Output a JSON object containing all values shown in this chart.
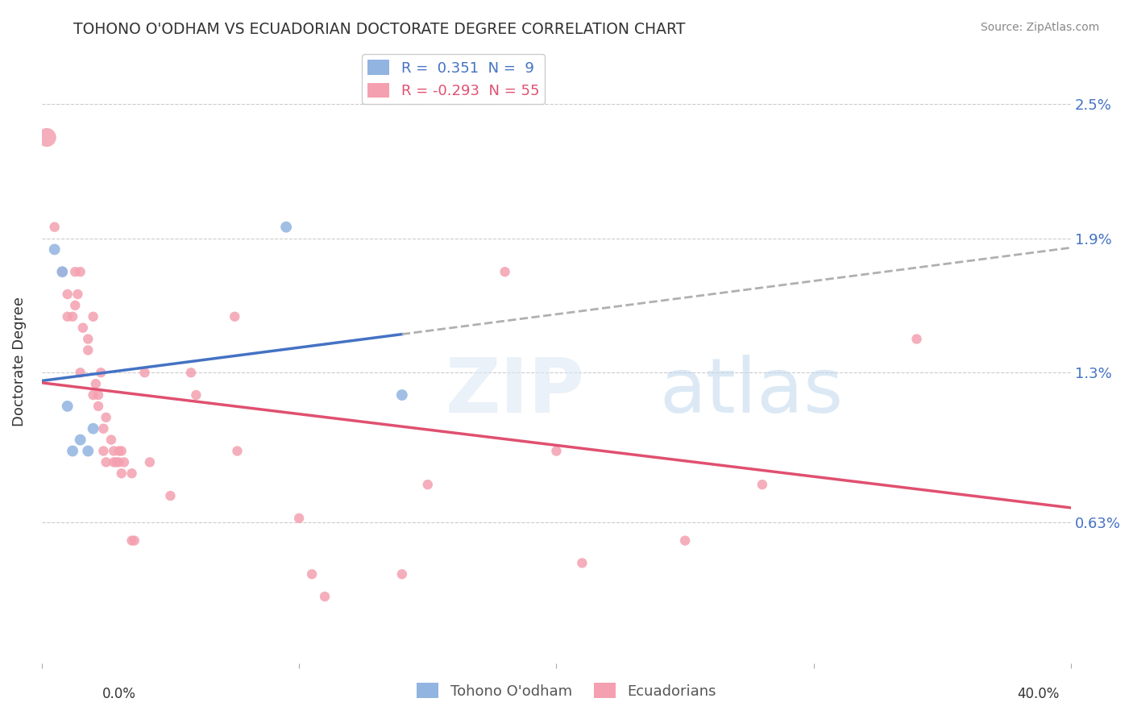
{
  "title": "TOHONO O'ODHAM VS ECUADORIAN DOCTORATE DEGREE CORRELATION CHART",
  "source": "Source: ZipAtlas.com",
  "ylabel": "Doctorate Degree",
  "yticks": [
    "0.63%",
    "1.3%",
    "1.9%",
    "2.5%"
  ],
  "ytick_vals": [
    0.0063,
    0.013,
    0.019,
    0.025
  ],
  "xlim": [
    0.0,
    0.4
  ],
  "ylim": [
    0.0,
    0.027
  ],
  "tohono_color": "#91b4e0",
  "ecuadorian_color": "#f4a0b0",
  "trend_blue": "#4472c4",
  "trend_pink": "#e05070",
  "trend_dashed_color": "#b0b0b0",
  "tohono_points": [
    [
      0.005,
      0.0185
    ],
    [
      0.008,
      0.0175
    ],
    [
      0.01,
      0.0115
    ],
    [
      0.012,
      0.0095
    ],
    [
      0.015,
      0.01
    ],
    [
      0.018,
      0.0095
    ],
    [
      0.02,
      0.0105
    ],
    [
      0.095,
      0.0195
    ],
    [
      0.14,
      0.012
    ]
  ],
  "ecuadorian_points": [
    [
      0.002,
      0.0235
    ],
    [
      0.005,
      0.0195
    ],
    [
      0.008,
      0.0175
    ],
    [
      0.01,
      0.0165
    ],
    [
      0.01,
      0.0155
    ],
    [
      0.012,
      0.0155
    ],
    [
      0.013,
      0.0175
    ],
    [
      0.013,
      0.016
    ],
    [
      0.014,
      0.0165
    ],
    [
      0.015,
      0.0175
    ],
    [
      0.015,
      0.013
    ],
    [
      0.016,
      0.015
    ],
    [
      0.018,
      0.0145
    ],
    [
      0.018,
      0.014
    ],
    [
      0.02,
      0.0155
    ],
    [
      0.02,
      0.012
    ],
    [
      0.021,
      0.0125
    ],
    [
      0.022,
      0.012
    ],
    [
      0.022,
      0.0115
    ],
    [
      0.023,
      0.013
    ],
    [
      0.024,
      0.0105
    ],
    [
      0.024,
      0.0095
    ],
    [
      0.025,
      0.011
    ],
    [
      0.025,
      0.009
    ],
    [
      0.027,
      0.01
    ],
    [
      0.028,
      0.0095
    ],
    [
      0.028,
      0.009
    ],
    [
      0.029,
      0.009
    ],
    [
      0.03,
      0.0095
    ],
    [
      0.03,
      0.009
    ],
    [
      0.031,
      0.0095
    ],
    [
      0.031,
      0.0085
    ],
    [
      0.032,
      0.009
    ],
    [
      0.035,
      0.0085
    ],
    [
      0.035,
      0.0055
    ],
    [
      0.036,
      0.0055
    ],
    [
      0.04,
      0.013
    ],
    [
      0.042,
      0.009
    ],
    [
      0.05,
      0.0075
    ],
    [
      0.058,
      0.013
    ],
    [
      0.06,
      0.012
    ],
    [
      0.075,
      0.0155
    ],
    [
      0.076,
      0.0095
    ],
    [
      0.1,
      0.0065
    ],
    [
      0.105,
      0.004
    ],
    [
      0.11,
      0.003
    ],
    [
      0.14,
      0.004
    ],
    [
      0.15,
      0.008
    ],
    [
      0.175,
      0.027
    ],
    [
      0.18,
      0.0175
    ],
    [
      0.2,
      0.0095
    ],
    [
      0.21,
      0.0045
    ],
    [
      0.25,
      0.0055
    ],
    [
      0.28,
      0.008
    ],
    [
      0.34,
      0.0145
    ]
  ],
  "tohono_marker_size": 100,
  "ecuadorian_marker_size": 80,
  "large_marker_size": 280
}
